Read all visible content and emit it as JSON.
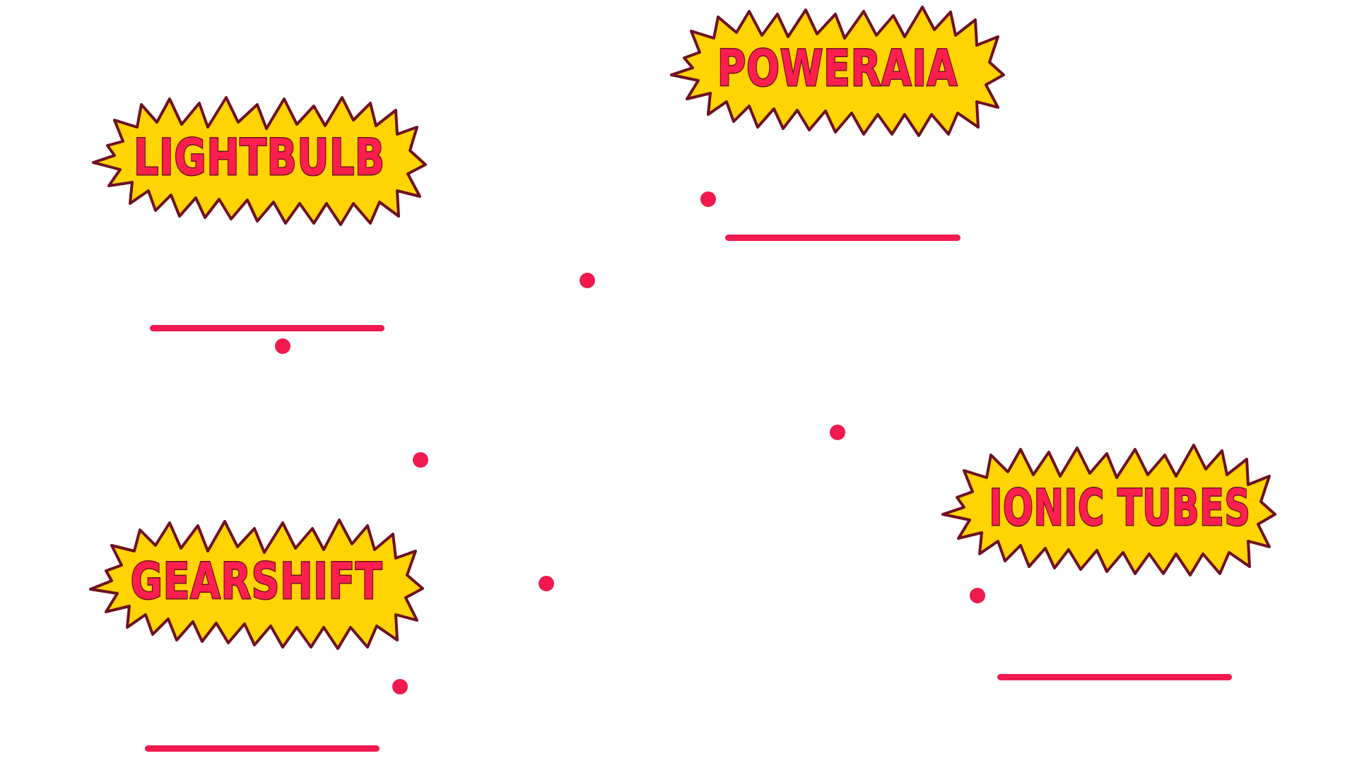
{
  "canvas": {
    "background": "#ffffff"
  },
  "badges": [
    {
      "label": "LIGHTBULB"
    },
    {
      "label": "POWERAIA"
    },
    {
      "label": "GEARSHIFT"
    },
    {
      "label": "IONIC TUBES"
    }
  ],
  "colors": {
    "burst_fill": "#ffd400",
    "burst_outline": "#6f1020",
    "text_fill": "#ff1f4f",
    "accent": "#f01a4f"
  },
  "icons": {
    "burst": "starburst-shape",
    "dot": "dot-marker",
    "line": "underline-bar"
  }
}
